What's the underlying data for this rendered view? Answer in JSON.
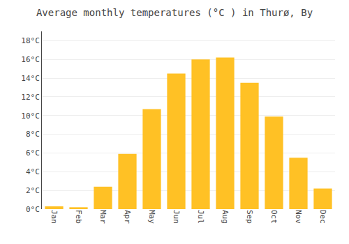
{
  "chart_data": {
    "type": "bar",
    "title": "Average monthly temperatures (°C ) in Thurø, By",
    "categories": [
      "Jan",
      "Feb",
      "Mar",
      "Apr",
      "May",
      "Jun",
      "Jul",
      "Aug",
      "Sep",
      "Oct",
      "Nov",
      "Dec"
    ],
    "values": [
      0.3,
      0.2,
      2.4,
      5.9,
      10.7,
      14.5,
      16.0,
      16.2,
      13.5,
      9.9,
      5.5,
      2.2
    ],
    "color": "#FFC125",
    "ylim": [
      0,
      19
    ],
    "yticks": [
      {
        "value": 0,
        "label": "0°C"
      },
      {
        "value": 2,
        "label": "2°C"
      },
      {
        "value": 4,
        "label": "4°C"
      },
      {
        "value": 6,
        "label": "6°C"
      },
      {
        "value": 8,
        "label": "8°C"
      },
      {
        "value": 10,
        "label": "10°C"
      },
      {
        "value": 12,
        "label": "12°C"
      },
      {
        "value": 14,
        "label": "14°C"
      },
      {
        "value": 16,
        "label": "16°C"
      },
      {
        "value": 18,
        "label": "18°C"
      }
    ],
    "grid": true
  }
}
